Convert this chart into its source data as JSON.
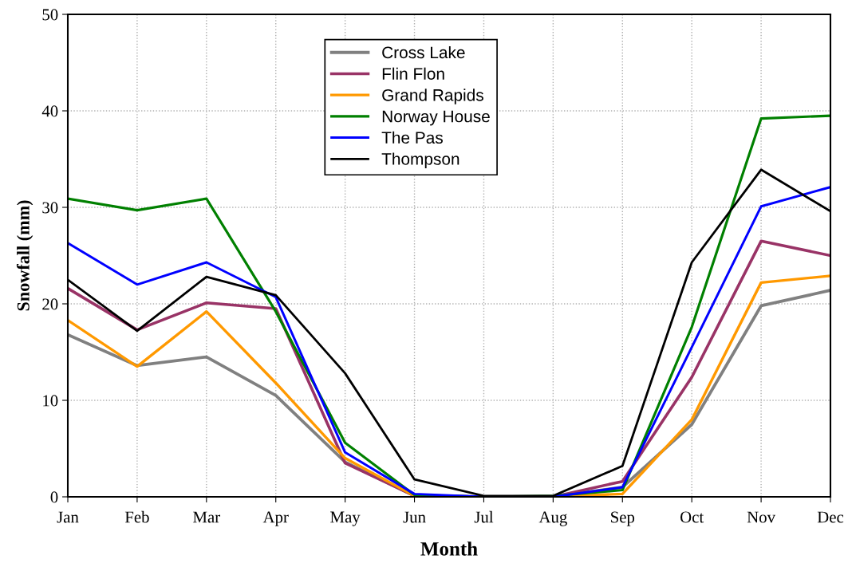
{
  "chart_data": {
    "type": "line",
    "xlabel": "Month",
    "ylabel": "Snowfall (mm)",
    "categories": [
      "Jan",
      "Feb",
      "Mar",
      "Apr",
      "May",
      "Jun",
      "Jul",
      "Aug",
      "Sep",
      "Oct",
      "Nov",
      "Dec"
    ],
    "series": [
      {
        "name": "Cross Lake",
        "color": "#808080",
        "values": [
          16.8,
          13.6,
          14.5,
          10.5,
          3.6,
          0.1,
          0,
          0,
          1.0,
          7.5,
          19.8,
          21.4
        ]
      },
      {
        "name": "Flin Flon",
        "color": "#993366",
        "values": [
          21.6,
          17.3,
          20.1,
          19.5,
          3.5,
          0.1,
          0,
          0,
          1.6,
          12.4,
          26.5,
          25.0
        ]
      },
      {
        "name": "Grand Rapids",
        "color": "#ff9900",
        "values": [
          18.3,
          13.5,
          19.2,
          11.8,
          4.0,
          0.1,
          0,
          0,
          0.3,
          8.0,
          22.2,
          22.9
        ]
      },
      {
        "name": "Norway House",
        "color": "#008000",
        "values": [
          30.9,
          29.7,
          30.9,
          19.2,
          5.6,
          0.2,
          0,
          0.1,
          0.7,
          17.6,
          39.2,
          39.5
        ]
      },
      {
        "name": "The Pas",
        "color": "#0000ff",
        "values": [
          26.3,
          22.0,
          24.3,
          20.7,
          4.6,
          0.3,
          0,
          0,
          1.0,
          15.5,
          30.1,
          32.1
        ]
      },
      {
        "name": "Thompson",
        "color": "#000000",
        "values": [
          22.5,
          17.2,
          22.8,
          20.9,
          12.8,
          1.8,
          0.1,
          0.1,
          3.2,
          24.3,
          33.9,
          29.6
        ]
      }
    ],
    "ylim": [
      0,
      50
    ],
    "yticks": [
      0,
      10,
      20,
      30,
      40,
      50
    ],
    "grid": true,
    "legend": "top",
    "marker": "none",
    "line_style": "solid"
  }
}
